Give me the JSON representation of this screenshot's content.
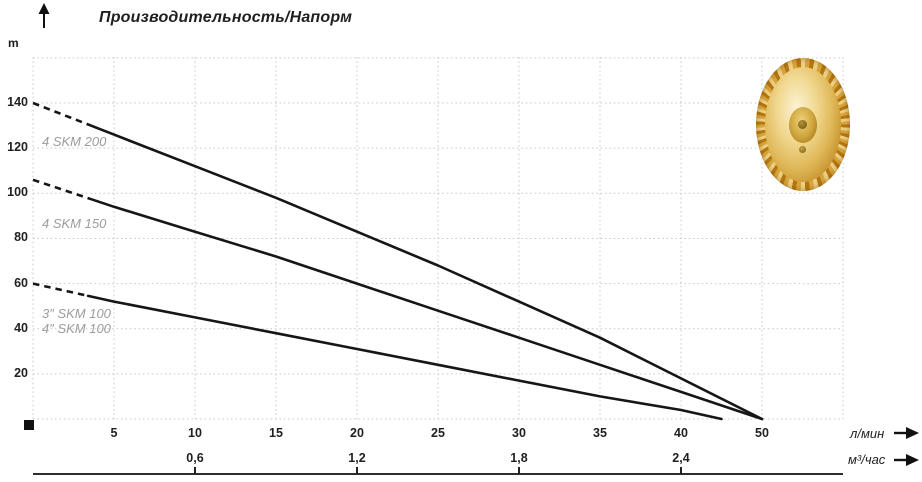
{
  "title": "Производительность/Напорм",
  "y_axis": {
    "unit": "m",
    "ticks": [
      "140",
      "120",
      "100",
      "80",
      "60",
      "40",
      "20"
    ]
  },
  "x_axis_primary": {
    "unit": "л/мин",
    "ticks": [
      "5",
      "10",
      "15",
      "20",
      "25",
      "30",
      "35",
      "40",
      "50"
    ]
  },
  "x_axis_secondary": {
    "unit": "м³/час",
    "ticks": [
      "0,6",
      "1,2",
      "1,8",
      "2,4"
    ]
  },
  "curve_labels": [
    "4 SKM 200",
    "4 SKM 150",
    "3″ SKM 100",
    "4″ SKM 100"
  ],
  "colors": {
    "curve": "#161616",
    "grid": "#c9c9c9",
    "text": "#1f1f1f",
    "muted_label": "#9c9c9c",
    "axis_line": "#2e2e2e",
    "impeller_gold": "#d9ae45"
  },
  "chart_data": {
    "type": "line",
    "title": "Производительность/Напорм",
    "ylabel": "m",
    "xlabel_primary": "л/мин",
    "xlabel_secondary": "м³/час",
    "x_ticks_lmin": [
      5,
      10,
      15,
      20,
      25,
      30,
      35,
      40,
      50
    ],
    "x_ticks_m3h": [
      "0,6",
      "1,2",
      "1,8",
      "2,4"
    ],
    "ylim": [
      0,
      160
    ],
    "grid": "dotted",
    "legend_position": "inline-left",
    "series": [
      {
        "name": "4 SKM 200",
        "x": [
          0,
          5,
          10,
          15,
          20,
          25,
          30,
          35,
          40,
          50
        ],
        "y": [
          140,
          126,
          112,
          98,
          83,
          68,
          52,
          36,
          18,
          0
        ],
        "dashed_until_x": 3.5
      },
      {
        "name": "4 SKM 150",
        "x": [
          0,
          5,
          10,
          15,
          20,
          25,
          30,
          35,
          40,
          50
        ],
        "y": [
          106,
          94,
          83,
          72,
          60,
          48,
          36,
          24,
          12,
          0
        ],
        "dashed_until_x": 3.5
      },
      {
        "name": "3″/4″ SKM 100",
        "x": [
          0,
          5,
          10,
          15,
          20,
          25,
          30,
          35,
          40,
          45
        ],
        "y": [
          60,
          52,
          45,
          38,
          31,
          24,
          17,
          10,
          4,
          0
        ],
        "dashed_until_x": 3.4
      }
    ]
  }
}
